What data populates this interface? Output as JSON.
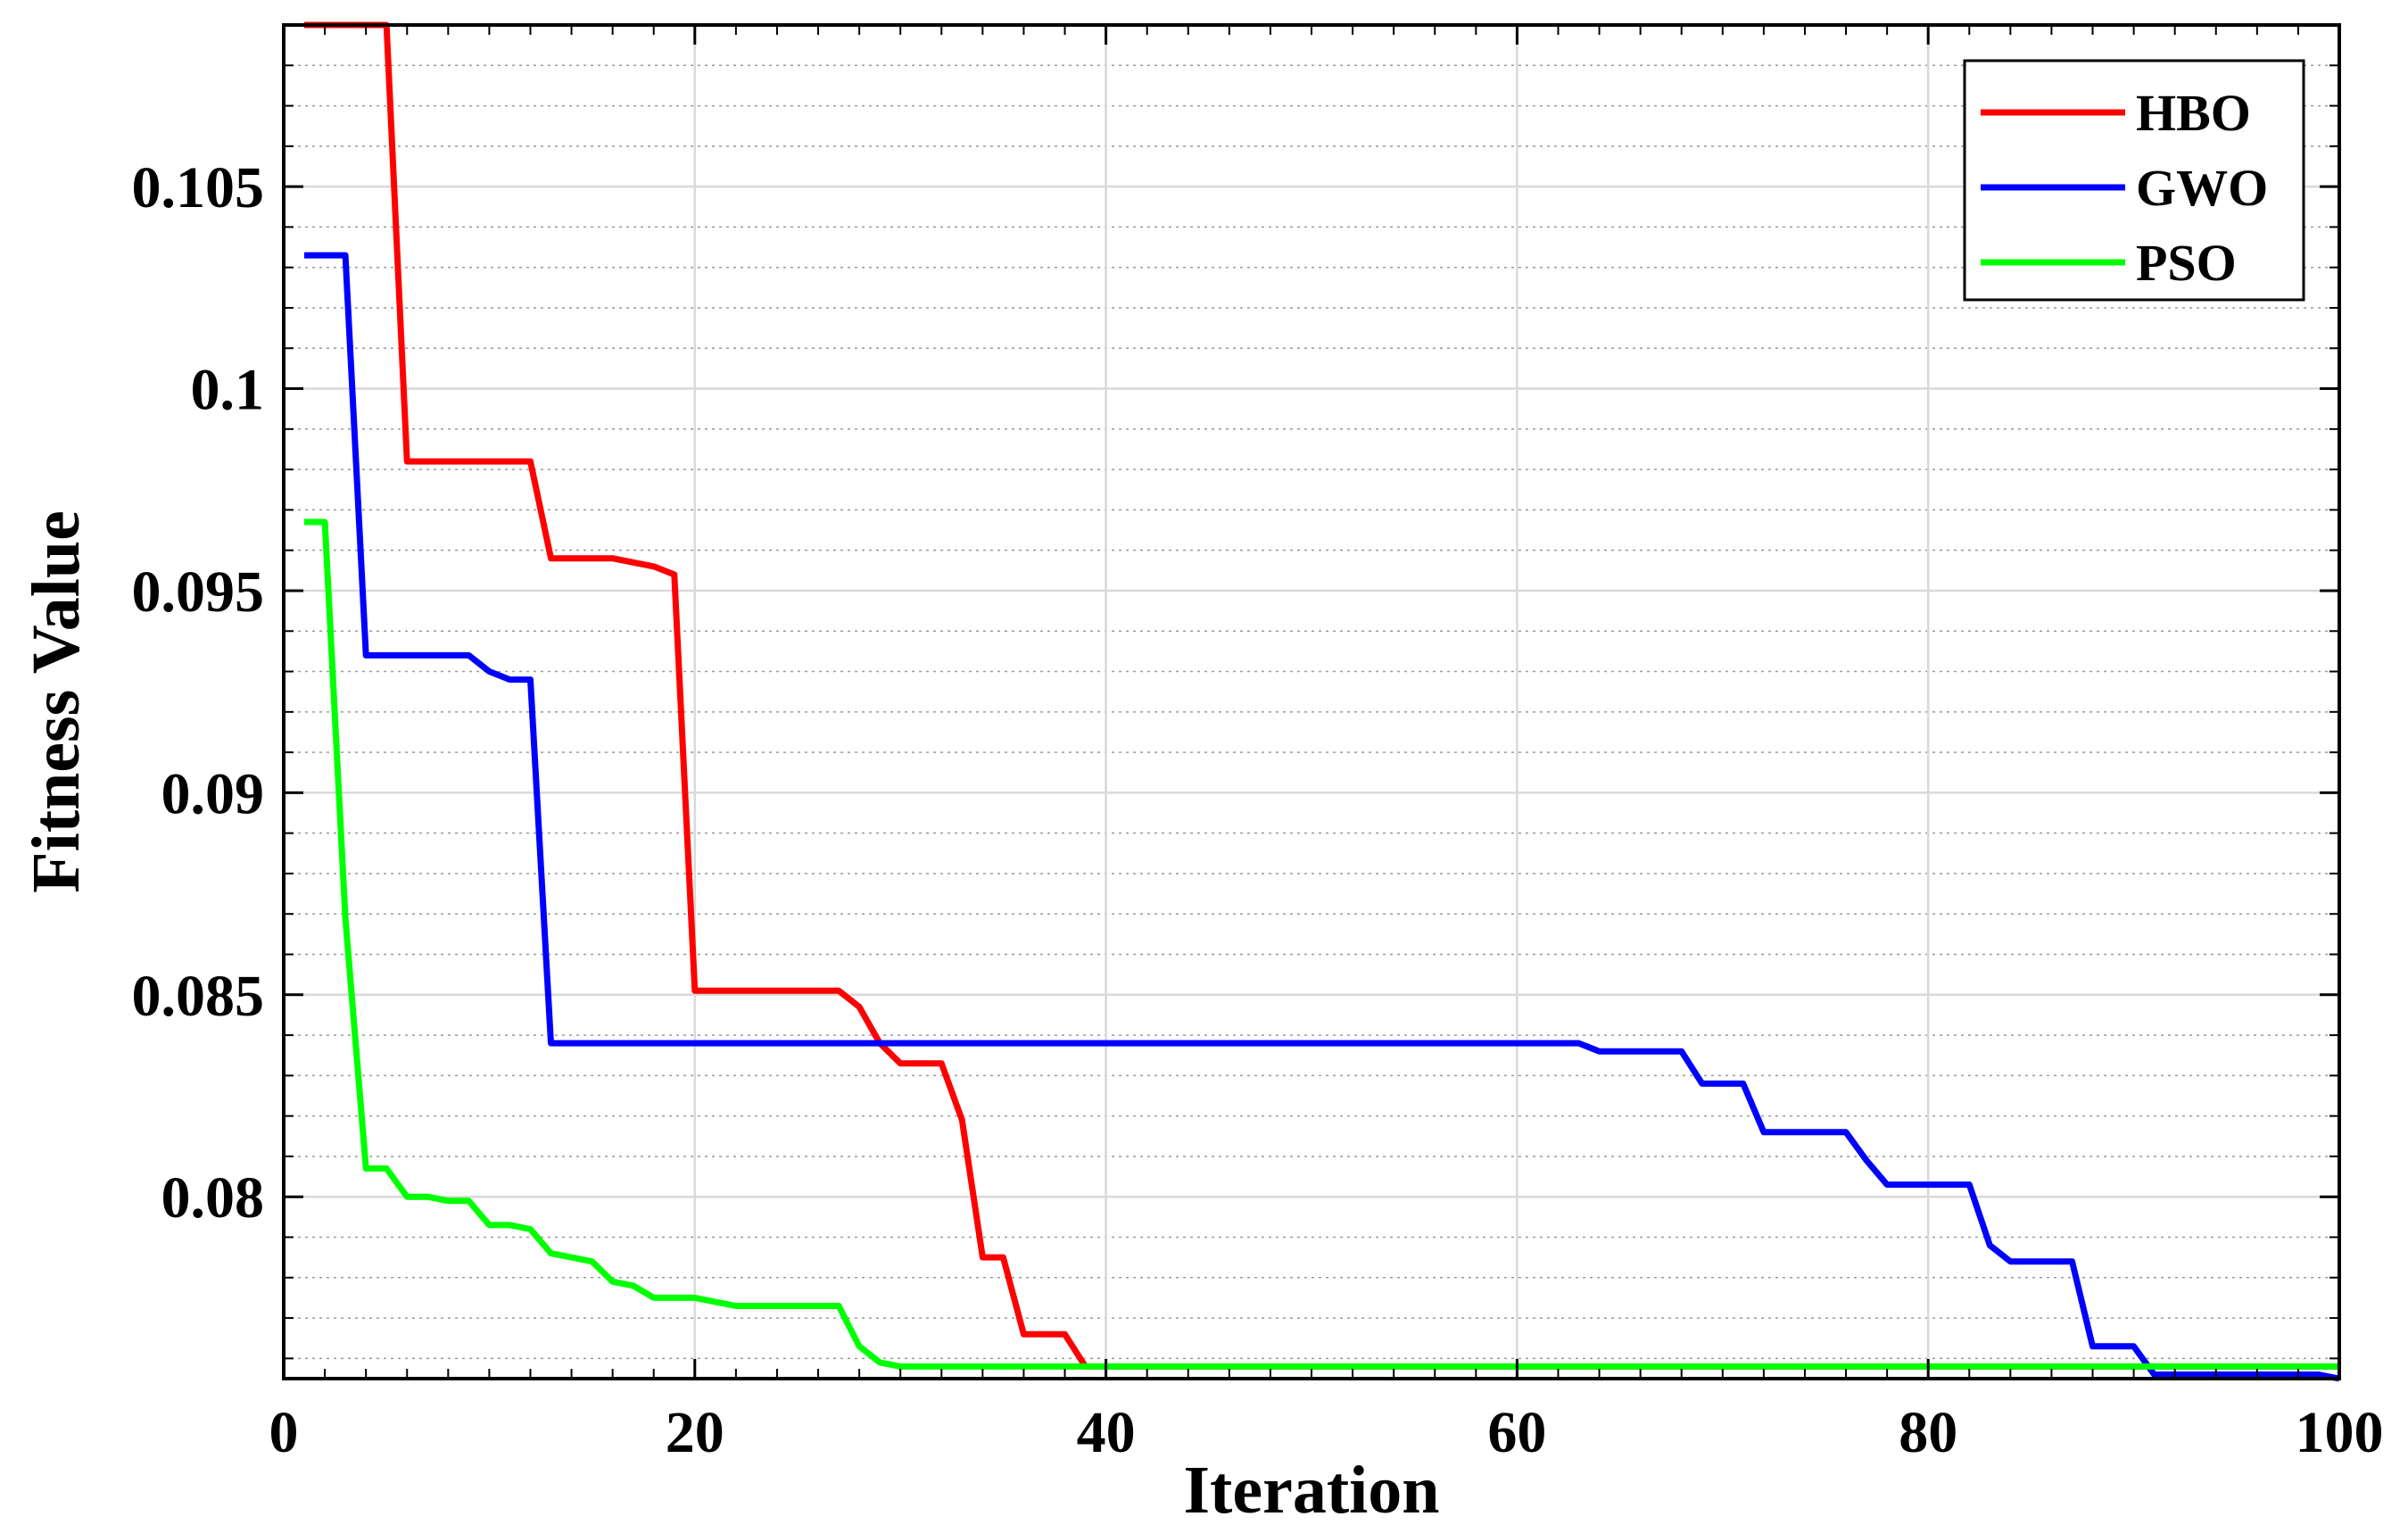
{
  "chart_data": {
    "type": "line",
    "xlabel": "Iteration",
    "ylabel": "Fitness Value",
    "xlim": [
      0,
      100
    ],
    "ylim": [
      0.0755,
      0.109
    ],
    "x_ticks": [
      0,
      20,
      40,
      60,
      80,
      100
    ],
    "x_tick_labels": [
      "0",
      "20",
      "40",
      "60",
      "80",
      "100"
    ],
    "y_ticks": [
      0.08,
      0.085,
      0.09,
      0.095,
      0.1,
      0.105
    ],
    "y_tick_labels": [
      "0.08",
      "0.085",
      "0.09",
      "0.095",
      "0.1",
      "0.105"
    ],
    "grid": true,
    "minor_grid": true,
    "legend_position": "top-right",
    "series": [
      {
        "name": "HBO",
        "color": "#ff0000",
        "x": [
          1,
          5,
          6,
          12,
          13,
          16,
          17,
          18,
          19,
          20,
          27,
          28,
          29,
          30,
          31,
          32,
          33,
          34,
          35,
          36,
          37,
          38,
          39,
          40,
          41,
          42,
          43,
          44,
          45,
          50,
          51,
          52,
          53,
          54,
          55,
          56,
          57,
          58,
          59,
          60,
          63,
          100
        ],
        "y": [
          0.109,
          0.109,
          0.0982,
          0.0982,
          0.0958,
          0.0958,
          0.0957,
          0.0956,
          0.0954,
          0.0851,
          0.0851,
          0.0847,
          0.0838,
          0.0833,
          0.0833,
          0.0833,
          0.0819,
          0.0785,
          0.0785,
          0.0766,
          0.0766,
          0.0766,
          0.0758,
          0.0758,
          0.0758,
          0.0758,
          0.0758,
          0.0758,
          0.0758,
          0.0758,
          0.0758,
          0.0758,
          0.0758,
          0.0758,
          0.0758,
          0.0758,
          0.0758,
          0.0758,
          0.0758,
          0.0758,
          0.0758,
          0.0758
        ]
      },
      {
        "name": "GWO",
        "color": "#0000ff",
        "x": [
          1,
          3,
          4,
          9,
          10,
          11,
          12,
          13,
          63,
          64,
          68,
          69,
          71,
          72,
          76,
          77,
          78,
          82,
          83,
          84,
          87,
          88,
          90,
          91,
          99,
          100
        ],
        "y": [
          0.1033,
          0.1033,
          0.0934,
          0.0934,
          0.093,
          0.0928,
          0.0928,
          0.0838,
          0.0838,
          0.0836,
          0.0836,
          0.0828,
          0.0828,
          0.0816,
          0.0816,
          0.0809,
          0.0803,
          0.0803,
          0.0788,
          0.0784,
          0.0784,
          0.0763,
          0.0763,
          0.0756,
          0.0756,
          0.0755
        ]
      },
      {
        "name": "PSO",
        "color": "#00ff00",
        "x": [
          1,
          2,
          3,
          4,
          5,
          6,
          7,
          8,
          9,
          10,
          11,
          12,
          13,
          14,
          15,
          16,
          17,
          18,
          19,
          20,
          21,
          22,
          23,
          24,
          25,
          26,
          27,
          28,
          29,
          30,
          31,
          32,
          33,
          34,
          35,
          36,
          37,
          38,
          39,
          40,
          100
        ],
        "y": [
          0.0967,
          0.0967,
          0.0869,
          0.0807,
          0.0807,
          0.08,
          0.08,
          0.0799,
          0.0799,
          0.0793,
          0.0793,
          0.0792,
          0.0786,
          0.0785,
          0.0784,
          0.0779,
          0.0778,
          0.0775,
          0.0775,
          0.0775,
          0.0774,
          0.0773,
          0.0773,
          0.0773,
          0.0773,
          0.0773,
          0.0773,
          0.0763,
          0.0759,
          0.0758,
          0.0758,
          0.0758,
          0.0758,
          0.0758,
          0.0758,
          0.0758,
          0.0758,
          0.0758,
          0.0758,
          0.0758,
          0.0758
        ]
      }
    ]
  }
}
